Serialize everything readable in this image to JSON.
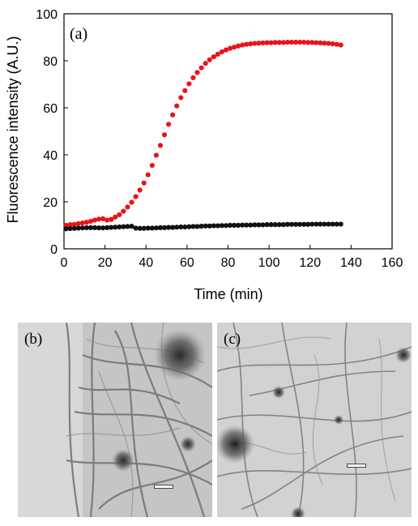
{
  "chart_data": {
    "type": "scatter",
    "panel_label": "(a)",
    "xlabel": "Time (min)",
    "ylabel": "Fluorescence intensity (A.U.)",
    "xlim": [
      0,
      160
    ],
    "ylim": [
      0,
      100
    ],
    "xticks": [
      "0",
      "20",
      "40",
      "60",
      "80",
      "100",
      "120",
      "140",
      "160"
    ],
    "yticks": [
      "0",
      "20",
      "40",
      "60",
      "80",
      "100"
    ],
    "grid": false,
    "colors": {
      "red_series": "#e8141b",
      "black_series": "#111111"
    },
    "series": [
      {
        "color": "red",
        "x": [
          1,
          3,
          5,
          7,
          9,
          11,
          13,
          15,
          17,
          19,
          21,
          23,
          25,
          27,
          29,
          31,
          33,
          35,
          37,
          39,
          41,
          43,
          45,
          47,
          49,
          51,
          53,
          55,
          57,
          59,
          61,
          63,
          65,
          67,
          69,
          71,
          73,
          75,
          77,
          79,
          81,
          83,
          85,
          87,
          89,
          91,
          93,
          95,
          97,
          99,
          101,
          103,
          105,
          107,
          109,
          111,
          113,
          115,
          117,
          119,
          121,
          123,
          125,
          127,
          129,
          131,
          133,
          135
        ],
        "y": [
          10,
          10.3,
          10.4,
          10.7,
          11,
          11.3,
          11.7,
          12.2,
          12.6,
          12.8,
          12.2,
          12.5,
          13.5,
          14.5,
          16,
          17.8,
          19.8,
          22.2,
          25,
          28,
          31.5,
          35.5,
          39.8,
          44,
          48.5,
          53,
          57,
          60.8,
          64.3,
          67.3,
          70.2,
          72.8,
          75,
          77,
          78.9,
          80.4,
          81.7,
          82.8,
          83.8,
          84.6,
          85.3,
          85.8,
          86.3,
          86.7,
          87,
          87.2,
          87.4,
          87.5,
          87.6,
          87.7,
          87.7,
          87.8,
          87.8,
          87.8,
          87.9,
          87.9,
          87.9,
          87.9,
          87.9,
          87.8,
          87.8,
          87.7,
          87.6,
          87.5,
          87.4,
          87.2,
          87,
          86.7
        ]
      },
      {
        "color": "black",
        "x": [
          1,
          3,
          5,
          7,
          9,
          11,
          13,
          15,
          17,
          19,
          21,
          23,
          25,
          27,
          29,
          31,
          33,
          35,
          37,
          39,
          41,
          43,
          45,
          47,
          49,
          51,
          53,
          55,
          57,
          59,
          61,
          63,
          65,
          67,
          69,
          71,
          73,
          75,
          77,
          79,
          81,
          83,
          85,
          87,
          89,
          91,
          93,
          95,
          97,
          99,
          101,
          103,
          105,
          107,
          109,
          111,
          113,
          115,
          117,
          119,
          121,
          123,
          125,
          127,
          129,
          131,
          133,
          135
        ],
        "y": [
          8.5,
          8.6,
          8.7,
          8.8,
          8.9,
          9,
          9,
          9,
          8.9,
          8.9,
          9,
          9.1,
          9.2,
          9.3,
          9.4,
          9.5,
          9.6,
          8.8,
          8.7,
          8.7,
          8.8,
          8.8,
          8.9,
          9,
          9,
          9.1,
          9.1,
          9.2,
          9.3,
          9.3,
          9.4,
          9.5,
          9.5,
          9.6,
          9.7,
          9.7,
          9.8,
          9.8,
          9.9,
          9.9,
          10,
          10,
          10,
          10.1,
          10.1,
          10.1,
          10.2,
          10.2,
          10.2,
          10.3,
          10.3,
          10.3,
          10.3,
          10.3,
          10.4,
          10.4,
          10.4,
          10.4,
          10.4,
          10.4,
          10.5,
          10.5,
          10.5,
          10.5,
          10.5,
          10.5,
          10.5,
          10.5
        ]
      }
    ]
  },
  "micrographs": [
    {
      "label": "(b)"
    },
    {
      "label": "(c)"
    }
  ]
}
